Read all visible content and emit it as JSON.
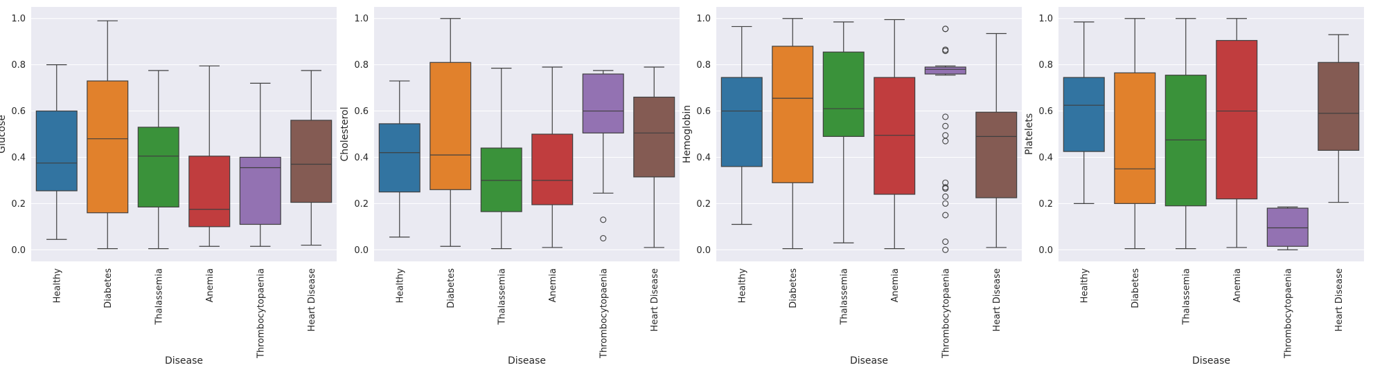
{
  "chart_data": [
    {
      "type": "box",
      "xlabel": "Disease",
      "ylabel": "Glucose",
      "ylim": [
        -0.05,
        1.05
      ],
      "yticks": [
        "0.0",
        "0.2",
        "0.4",
        "0.6",
        "0.8",
        "1.0"
      ],
      "grid": true,
      "categories": [
        "Healthy",
        "Diabetes",
        "Thalassemia",
        "Anemia",
        "Thrombocytopaenia",
        "Heart Disease"
      ],
      "boxes": [
        {
          "min": 0.045,
          "q1": 0.255,
          "median": 0.375,
          "q3": 0.6,
          "max": 0.8,
          "outliers": []
        },
        {
          "min": 0.005,
          "q1": 0.16,
          "median": 0.48,
          "q3": 0.73,
          "max": 0.99,
          "outliers": []
        },
        {
          "min": 0.005,
          "q1": 0.185,
          "median": 0.405,
          "q3": 0.53,
          "max": 0.775,
          "outliers": []
        },
        {
          "min": 0.015,
          "q1": 0.1,
          "median": 0.175,
          "q3": 0.405,
          "max": 0.795,
          "outliers": []
        },
        {
          "min": 0.015,
          "q1": 0.11,
          "median": 0.355,
          "q3": 0.4,
          "max": 0.72,
          "outliers": []
        },
        {
          "min": 0.02,
          "q1": 0.205,
          "median": 0.37,
          "q3": 0.56,
          "max": 0.775,
          "outliers": []
        }
      ]
    },
    {
      "type": "box",
      "xlabel": "Disease",
      "ylabel": "Cholesterol",
      "ylim": [
        -0.05,
        1.05
      ],
      "yticks": [
        "0.0",
        "0.2",
        "0.4",
        "0.6",
        "0.8",
        "1.0"
      ],
      "grid": true,
      "categories": [
        "Healthy",
        "Diabetes",
        "Thalassemia",
        "Anemia",
        "Thrombocytopaenia",
        "Heart Disease"
      ],
      "boxes": [
        {
          "min": 0.055,
          "q1": 0.25,
          "median": 0.42,
          "q3": 0.545,
          "max": 0.73,
          "outliers": []
        },
        {
          "min": 0.015,
          "q1": 0.26,
          "median": 0.41,
          "q3": 0.81,
          "max": 1.0,
          "outliers": []
        },
        {
          "min": 0.005,
          "q1": 0.165,
          "median": 0.3,
          "q3": 0.44,
          "max": 0.785,
          "outliers": []
        },
        {
          "min": 0.01,
          "q1": 0.195,
          "median": 0.3,
          "q3": 0.5,
          "max": 0.79,
          "outliers": []
        },
        {
          "min": 0.245,
          "q1": 0.505,
          "median": 0.6,
          "q3": 0.76,
          "max": 0.775,
          "outliers": [
            0.13,
            0.05
          ]
        },
        {
          "min": 0.01,
          "q1": 0.315,
          "median": 0.505,
          "q3": 0.66,
          "max": 0.79,
          "outliers": []
        }
      ]
    },
    {
      "type": "box",
      "xlabel": "Disease",
      "ylabel": "Hemoglobin",
      "ylim": [
        -0.05,
        1.05
      ],
      "yticks": [
        "0.0",
        "0.2",
        "0.4",
        "0.6",
        "0.8",
        "1.0"
      ],
      "grid": true,
      "categories": [
        "Healthy",
        "Diabetes",
        "Thalassemia",
        "Anemia",
        "Thrombocytopaenia",
        "Heart Disease"
      ],
      "boxes": [
        {
          "min": 0.11,
          "q1": 0.36,
          "median": 0.6,
          "q3": 0.745,
          "max": 0.965,
          "outliers": []
        },
        {
          "min": 0.005,
          "q1": 0.29,
          "median": 0.655,
          "q3": 0.88,
          "max": 1.0,
          "outliers": []
        },
        {
          "min": 0.03,
          "q1": 0.49,
          "median": 0.61,
          "q3": 0.855,
          "max": 0.985,
          "outliers": []
        },
        {
          "min": 0.005,
          "q1": 0.24,
          "median": 0.495,
          "q3": 0.745,
          "max": 0.995,
          "outliers": []
        },
        {
          "min": 0.755,
          "q1": 0.76,
          "median": 0.78,
          "q3": 0.79,
          "max": 0.795,
          "outliers": [
            0.955,
            0.955,
            0.865,
            0.86,
            0.575,
            0.535,
            0.495,
            0.47,
            0.29,
            0.27,
            0.265,
            0.23,
            0.2,
            0.15,
            0.035,
            0.0
          ]
        },
        {
          "min": 0.01,
          "q1": 0.225,
          "median": 0.49,
          "q3": 0.595,
          "max": 0.935,
          "outliers": []
        }
      ]
    },
    {
      "type": "box",
      "xlabel": "Disease",
      "ylabel": "Platelets",
      "ylim": [
        -0.05,
        1.05
      ],
      "yticks": [
        "0.0",
        "0.2",
        "0.4",
        "0.6",
        "0.8",
        "1.0"
      ],
      "grid": true,
      "categories": [
        "Healthy",
        "Diabetes",
        "Thalassemia",
        "Anemia",
        "Thrombocytopaenia",
        "Heart Disease"
      ],
      "boxes": [
        {
          "min": 0.2,
          "q1": 0.425,
          "median": 0.625,
          "q3": 0.745,
          "max": 0.985,
          "outliers": []
        },
        {
          "min": 0.005,
          "q1": 0.2,
          "median": 0.35,
          "q3": 0.765,
          "max": 1.0,
          "outliers": []
        },
        {
          "min": 0.005,
          "q1": 0.19,
          "median": 0.475,
          "q3": 0.755,
          "max": 1.0,
          "outliers": []
        },
        {
          "min": 0.01,
          "q1": 0.22,
          "median": 0.6,
          "q3": 0.905,
          "max": 1.0,
          "outliers": []
        },
        {
          "min": 0.0,
          "q1": 0.015,
          "median": 0.095,
          "q3": 0.18,
          "max": 0.185,
          "outliers": []
        },
        {
          "min": 0.205,
          "q1": 0.43,
          "median": 0.59,
          "q3": 0.81,
          "max": 0.93,
          "outliers": []
        }
      ]
    }
  ],
  "colors": {
    "series": [
      "#3274a1",
      "#e1812c",
      "#3a923a",
      "#c03d3e",
      "#9372b2",
      "#845b53"
    ],
    "plot_background": "#eaeaf2",
    "grid": "#ffffff",
    "line": "#3f3f3f"
  }
}
